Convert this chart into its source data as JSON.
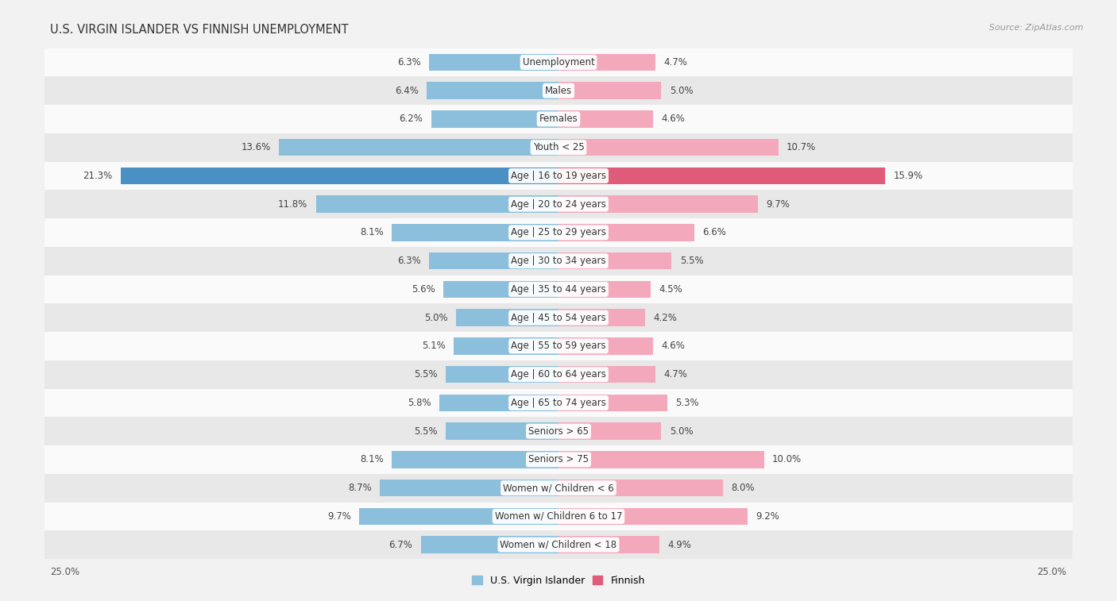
{
  "title": "U.S. VIRGIN ISLANDER VS FINNISH UNEMPLOYMENT",
  "source": "Source: ZipAtlas.com",
  "categories": [
    "Unemployment",
    "Males",
    "Females",
    "Youth < 25",
    "Age | 16 to 19 years",
    "Age | 20 to 24 years",
    "Age | 25 to 29 years",
    "Age | 30 to 34 years",
    "Age | 35 to 44 years",
    "Age | 45 to 54 years",
    "Age | 55 to 59 years",
    "Age | 60 to 64 years",
    "Age | 65 to 74 years",
    "Seniors > 65",
    "Seniors > 75",
    "Women w/ Children < 6",
    "Women w/ Children 6 to 17",
    "Women w/ Children < 18"
  ],
  "left_values": [
    6.3,
    6.4,
    6.2,
    13.6,
    21.3,
    11.8,
    8.1,
    6.3,
    5.6,
    5.0,
    5.1,
    5.5,
    5.8,
    5.5,
    8.1,
    8.7,
    9.7,
    6.7
  ],
  "right_values": [
    4.7,
    5.0,
    4.6,
    10.7,
    15.9,
    9.7,
    6.6,
    5.5,
    4.5,
    4.2,
    4.6,
    4.7,
    5.3,
    5.0,
    10.0,
    8.0,
    9.2,
    4.9
  ],
  "left_color": "#8bbfdc",
  "right_color": "#f4a8bc",
  "highlight_left_color": "#4a90c4",
  "highlight_right_color": "#e05a7a",
  "highlight_row": 4,
  "axis_max": 25.0,
  "bg_color": "#f2f2f2",
  "row_bg_light": "#fafafa",
  "row_bg_dark": "#e8e8e8",
  "label_fontsize": 8.5,
  "title_fontsize": 10.5,
  "value_fontsize": 8.5,
  "legend_left_label": "U.S. Virgin Islander",
  "legend_right_label": "Finnish"
}
